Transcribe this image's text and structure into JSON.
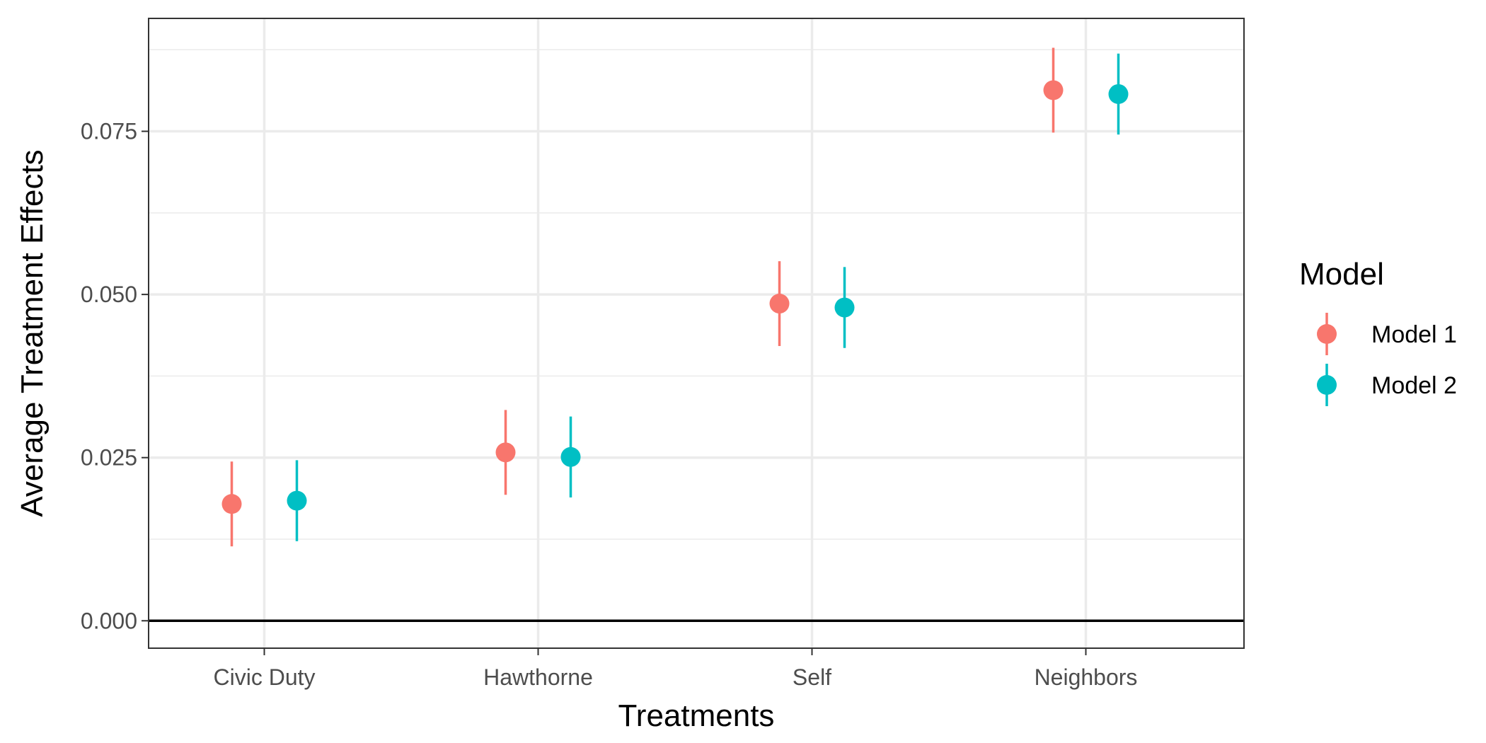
{
  "chart_data": {
    "type": "scatter",
    "title": "",
    "xlabel": "Treatments",
    "ylabel": "Average Treatment Effects",
    "categories": [
      "Civic Duty",
      "Hawthorne",
      "Self",
      "Neighbors"
    ],
    "ylim": [
      -0.0042,
      0.0923
    ],
    "yticks": [
      0.0,
      0.025,
      0.05,
      0.075
    ],
    "ytick_labels": [
      "0.000",
      "0.025",
      "0.050",
      "0.075"
    ],
    "hline": 0.0,
    "grid": true,
    "legend": {
      "title": "Model",
      "position": "right"
    },
    "series": [
      {
        "name": "Model 1",
        "color": "#F8766D",
        "values": [
          0.0179,
          0.0258,
          0.0486,
          0.0813
        ],
        "lower": [
          0.0114,
          0.0193,
          0.0421,
          0.0748
        ],
        "upper": [
          0.0244,
          0.0323,
          0.0551,
          0.0878
        ]
      },
      {
        "name": "Model 2",
        "color": "#00BFC4",
        "values": [
          0.0184,
          0.0251,
          0.048,
          0.0807
        ],
        "lower": [
          0.0122,
          0.0189,
          0.0418,
          0.0745
        ],
        "upper": [
          0.0246,
          0.0313,
          0.0542,
          0.0869
        ]
      }
    ]
  }
}
